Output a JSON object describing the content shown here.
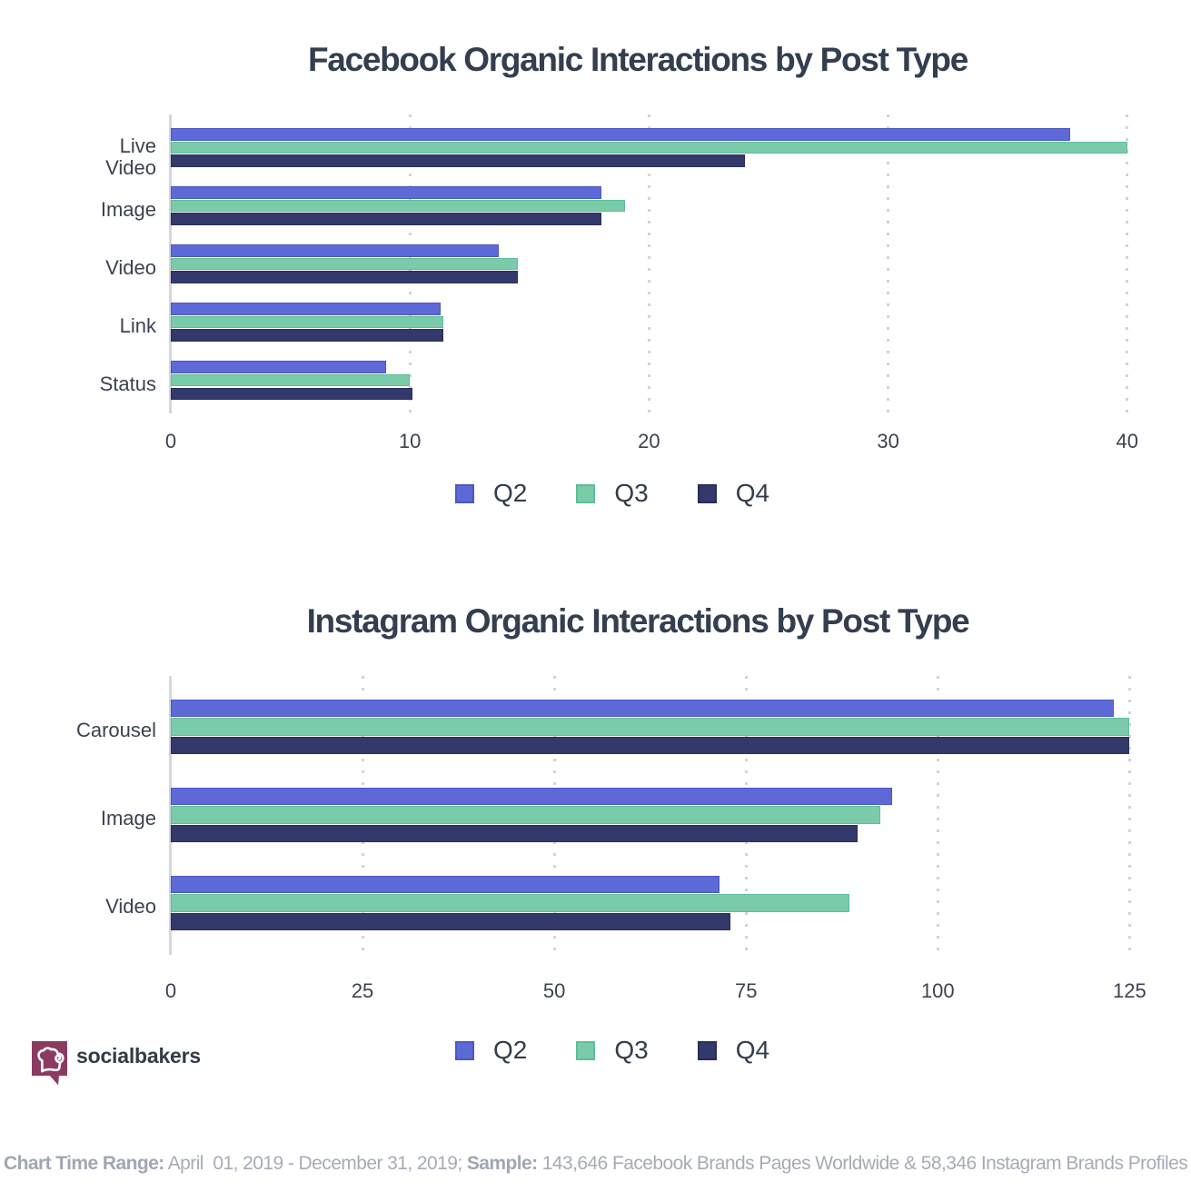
{
  "chart_data": [
    {
      "type": "bar",
      "orientation": "horizontal",
      "title": "Facebook Organic Interactions by Post Type",
      "categories": [
        "Live\nVideo",
        "Image",
        "Video",
        "Link",
        "Status"
      ],
      "series": [
        {
          "name": "Q2",
          "color": "#5e69d8",
          "border": "#4d57c0",
          "values": [
            37.6,
            18,
            13.7,
            11.3,
            9
          ]
        },
        {
          "name": "Q3",
          "color": "#79cbaa",
          "border": "#5fbd98",
          "values": [
            40,
            19,
            14.5,
            11.4,
            10
          ]
        },
        {
          "name": "Q4",
          "color": "#333a6b",
          "border": "#272e59",
          "values": [
            24,
            18,
            14.5,
            11.4,
            10.1
          ]
        }
      ],
      "xlabel": "",
      "ylabel": "",
      "xlim": [
        0,
        40
      ],
      "xticks": [
        0,
        10,
        20,
        30,
        40
      ],
      "grid": "dotted-vertical",
      "legend_position": "bottom"
    },
    {
      "type": "bar",
      "orientation": "horizontal",
      "title": "Instagram Organic Interactions by Post Type",
      "categories": [
        "Carousel",
        "Image",
        "Video"
      ],
      "series": [
        {
          "name": "Q2",
          "color": "#5e69d8",
          "border": "#4d57c0",
          "values": [
            123,
            94,
            71.5
          ]
        },
        {
          "name": "Q3",
          "color": "#79cbaa",
          "border": "#5fbd98",
          "values": [
            125,
            92.5,
            88.5
          ]
        },
        {
          "name": "Q4",
          "color": "#333a6b",
          "border": "#272e59",
          "values": [
            125,
            89.5,
            73
          ]
        }
      ],
      "xlabel": "",
      "ylabel": "",
      "xlim": [
        0,
        125
      ],
      "xticks": [
        0,
        25,
        50,
        75,
        100,
        125
      ],
      "grid": "dotted-vertical",
      "legend_position": "bottom"
    }
  ],
  "legend": {
    "items": [
      {
        "label": "Q2",
        "color": "#5e69d8",
        "border": "#4d57c0"
      },
      {
        "label": "Q3",
        "color": "#79cbaa",
        "border": "#5fbd98"
      },
      {
        "label": "Q4",
        "color": "#333a6b",
        "border": "#272e59"
      }
    ]
  },
  "logo": {
    "text": "socialbakers",
    "icon": "chef-hat-speech-bubble",
    "color": "#8b3a61"
  },
  "footer": {
    "segments": [
      {
        "text": "Chart Time Range:",
        "bold": true
      },
      {
        "text": " April  01, 2019 - December 31, 2019; ",
        "bold": false
      },
      {
        "text": "Sample:",
        "bold": true
      },
      {
        "text": " 143,646 Facebook Brands Pages Worldwide & 58,346 Instagram Brands Profiles",
        "bold": false
      }
    ]
  }
}
